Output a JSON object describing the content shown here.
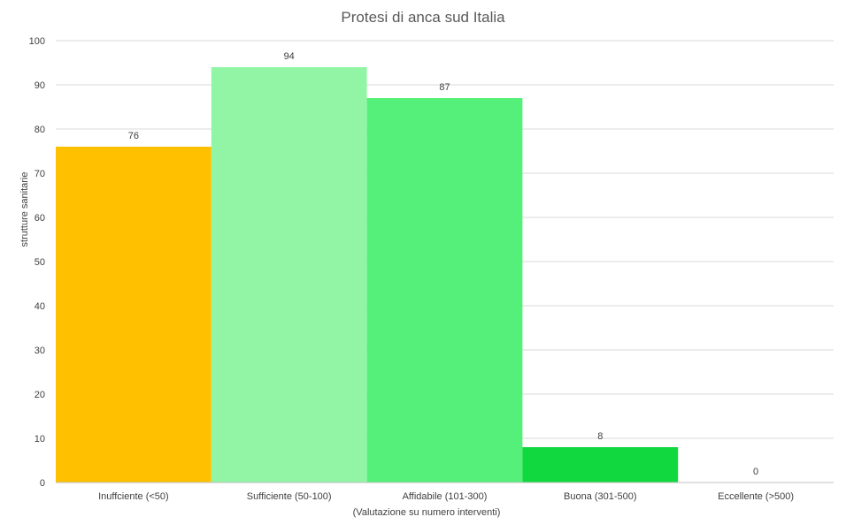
{
  "chart_data": {
    "type": "bar",
    "title": "Protesi di anca sud Italia",
    "xlabel": "(Valutazione su numero interventi)",
    "ylabel": "strutture sanitarie",
    "categories": [
      "Inuffciente (<50)",
      "Sufficiente (50-100)",
      "Affidabile (101-300)",
      "Buona (301-500)",
      "Eccellente (>500)"
    ],
    "values": [
      76,
      94,
      87,
      8,
      0
    ],
    "colors": [
      "#ffc000",
      "#92f5a5",
      "#55f07a",
      "#12d840",
      "#12d840"
    ],
    "ylim": [
      0,
      100
    ],
    "yticks": [
      0,
      10,
      20,
      30,
      40,
      50,
      60,
      70,
      80,
      90,
      100
    ],
    "grid": true,
    "legend": "none",
    "data_labels": true
  }
}
